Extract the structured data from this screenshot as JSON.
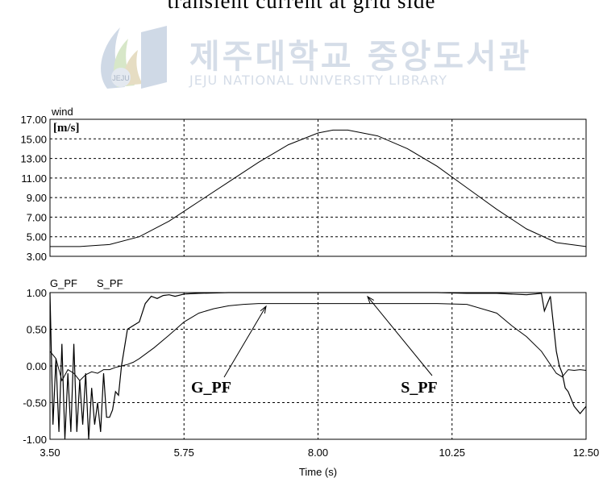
{
  "page_title": "transient current at grid side",
  "watermark": {
    "title": "제주대학교 중앙도서관",
    "subtitle": "JEJU NATIONAL UNIVERSITY LIBRARY",
    "logo_text": "JEJU"
  },
  "chart_data": [
    {
      "type": "line",
      "panel": "top",
      "legend": [
        "wind"
      ],
      "unit_label": "[m/s]",
      "xlim": [
        3.5,
        12.5
      ],
      "ylim": [
        3.0,
        17.0
      ],
      "yticks": [
        "17.00",
        "15.00",
        "13.00",
        "11.00",
        "9.00",
        "7.00",
        "5.00",
        "3.00"
      ],
      "grid": true,
      "series": [
        {
          "name": "wind",
          "x": [
            3.5,
            4.0,
            4.5,
            5.0,
            5.5,
            6.0,
            6.5,
            7.0,
            7.5,
            8.0,
            8.25,
            8.5,
            9.0,
            9.5,
            10.0,
            10.5,
            11.0,
            11.5,
            12.0,
            12.5
          ],
          "values": [
            4.0,
            4.0,
            4.2,
            5.0,
            6.6,
            8.6,
            10.6,
            12.6,
            14.4,
            15.6,
            15.9,
            15.9,
            15.3,
            14.0,
            12.2,
            10.0,
            7.8,
            5.8,
            4.4,
            4.0
          ]
        }
      ]
    },
    {
      "type": "line",
      "panel": "bottom",
      "legend": [
        "G_PF",
        "S_PF"
      ],
      "xlim": [
        3.5,
        12.5
      ],
      "ylim": [
        -1.0,
        1.0
      ],
      "xticks": [
        "3.50",
        "5.75",
        "8.00",
        "10.25",
        "12.50"
      ],
      "yticks": [
        "1.00",
        "0.50",
        "0.00",
        "-0.50",
        "-1.00"
      ],
      "xlabel": "Time (s)",
      "grid": true,
      "annotations": [
        "G_PF",
        "S_PF"
      ],
      "series": [
        {
          "name": "G_PF",
          "x": [
            3.5,
            3.6,
            3.7,
            3.8,
            3.9,
            4.0,
            4.1,
            4.2,
            4.3,
            4.4,
            4.5,
            4.6,
            4.7,
            4.8,
            4.9,
            5.0,
            5.25,
            5.5,
            5.75,
            6.0,
            6.25,
            6.5,
            6.75,
            7.0,
            8.0,
            9.0,
            10.0,
            10.5,
            11.0,
            11.25,
            11.5,
            11.75,
            12.0,
            12.1,
            12.2,
            12.3,
            12.4,
            12.5
          ],
          "values": [
            0.2,
            0.1,
            -0.2,
            -0.05,
            -0.1,
            -0.2,
            -0.12,
            -0.08,
            -0.1,
            -0.05,
            -0.05,
            -0.02,
            -0.0,
            0.02,
            0.05,
            0.1,
            0.25,
            0.42,
            0.6,
            0.72,
            0.78,
            0.82,
            0.84,
            0.85,
            0.85,
            0.85,
            0.85,
            0.84,
            0.72,
            0.55,
            0.4,
            0.2,
            -0.1,
            -0.15,
            -0.05,
            -0.06,
            -0.05,
            -0.06
          ]
        },
        {
          "name": "S_PF",
          "x": [
            3.5,
            3.55,
            3.6,
            3.65,
            3.7,
            3.75,
            3.8,
            3.85,
            3.9,
            3.95,
            4.0,
            4.05,
            4.1,
            4.15,
            4.2,
            4.25,
            4.3,
            4.35,
            4.4,
            4.45,
            4.5,
            4.55,
            4.6,
            4.65,
            4.7,
            4.8,
            4.9,
            5.0,
            5.1,
            5.2,
            5.3,
            5.4,
            5.5,
            5.6,
            5.75,
            6.0,
            6.5,
            7.0,
            8.0,
            9.0,
            10.0,
            10.5,
            11.0,
            11.5,
            11.75,
            11.8,
            11.9,
            12.0,
            12.05,
            12.1,
            12.15,
            12.2,
            12.3,
            12.4,
            12.5
          ],
          "values": [
            1.0,
            -0.8,
            0.1,
            -0.9,
            0.3,
            -1.0,
            -0.1,
            -0.9,
            0.3,
            -0.9,
            -0.2,
            -0.8,
            -0.1,
            -1.0,
            -0.3,
            -0.8,
            -0.5,
            -0.9,
            -0.1,
            -0.7,
            -0.7,
            -0.6,
            -0.35,
            -0.4,
            0.0,
            0.5,
            0.55,
            0.6,
            0.85,
            0.95,
            0.92,
            0.96,
            0.97,
            0.95,
            0.98,
            0.99,
            1.0,
            1.0,
            1.0,
            1.0,
            1.0,
            0.99,
            0.99,
            0.97,
            0.99,
            0.75,
            0.95,
            0.2,
            0.0,
            -0.1,
            -0.3,
            -0.35,
            -0.55,
            -0.65,
            -0.55
          ]
        }
      ]
    }
  ]
}
